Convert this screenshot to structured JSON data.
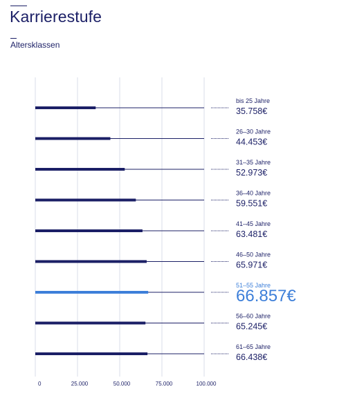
{
  "header": {
    "title": "Karrierestufe",
    "subtitle": "Altersklassen"
  },
  "colors": {
    "bar": "#1b1f66",
    "highlight": "#3d7fd9",
    "grid": "#d9dde8",
    "track": "#1b1f66"
  },
  "chart_data": {
    "type": "bar",
    "orientation": "horizontal",
    "categories": [
      "bis 25 Jahre",
      "26–30 Jahre",
      "31–35 Jahre",
      "36–40 Jahre",
      "41–45 Jahre",
      "46–50 Jahre",
      "51–55 Jahre",
      "56–60 Jahre",
      "61–65 Jahre"
    ],
    "values": [
      35758,
      44453,
      52973,
      59551,
      63481,
      65971,
      66857,
      65245,
      66438
    ],
    "value_labels": [
      "35.758€",
      "44.453€",
      "52.973€",
      "59.551€",
      "63.481€",
      "65.971€",
      "66.857€",
      "65.245€",
      "66.438€"
    ],
    "highlight_index": 6,
    "xlim": [
      0,
      100000
    ],
    "xticks": [
      0,
      25000,
      50000,
      75000,
      100000
    ],
    "xtick_labels": [
      "0",
      "25.000",
      "50.000",
      "75.000",
      "100.000"
    ],
    "grid": true,
    "title": "Karrierestufe",
    "xlabel": "",
    "ylabel": ""
  }
}
